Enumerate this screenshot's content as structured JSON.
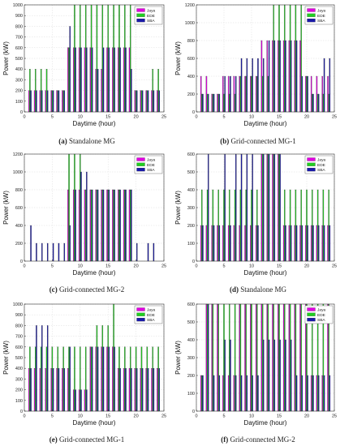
{
  "figure": {
    "panels": [
      {
        "letter": "(a)",
        "caption": "Standalone MG"
      },
      {
        "letter": "(b)",
        "caption": "Grid-connected MG-1"
      },
      {
        "letter": "(c)",
        "caption": "Grid-connected MG-2"
      },
      {
        "letter": "(d)",
        "caption": "Standalone MG"
      },
      {
        "letter": "(e)",
        "caption": "Grid-connected MG-1"
      },
      {
        "letter": "(f)",
        "caption": "Grid-connected MG-2"
      }
    ]
  },
  "colors": {
    "Jaya": "#e000e0",
    "EDE": "#22cc22",
    "SBA": "#1a1aa6"
  },
  "chart_data": [
    {
      "type": "bar",
      "xlabel": "Daytime (hour)",
      "ylabel": "Power (kW)",
      "xlim": [
        0,
        25
      ],
      "ylim": [
        0,
        1000
      ],
      "xticks": [
        0,
        5,
        10,
        15,
        20,
        25
      ],
      "yticks": [
        0,
        100,
        200,
        300,
        400,
        500,
        600,
        700,
        800,
        900,
        1000
      ],
      "grid": true,
      "legend_position": "top-right",
      "categories": [
        1,
        2,
        3,
        4,
        5,
        6,
        7,
        8,
        9,
        10,
        11,
        12,
        13,
        14,
        15,
        16,
        17,
        18,
        19,
        20,
        21,
        22,
        23,
        24
      ],
      "series": [
        {
          "name": "Jaya",
          "values": [
            200,
            200,
            200,
            200,
            200,
            200,
            200,
            600,
            600,
            600,
            600,
            600,
            400,
            400,
            600,
            600,
            600,
            600,
            600,
            200,
            200,
            200,
            200,
            200
          ]
        },
        {
          "name": "EDE",
          "values": [
            400,
            400,
            400,
            400,
            200,
            200,
            200,
            600,
            1000,
            1000,
            1000,
            1000,
            1000,
            1000,
            1000,
            1000,
            1000,
            1000,
            1000,
            200,
            200,
            200,
            400,
            400
          ]
        },
        {
          "name": "SBA",
          "values": [
            200,
            200,
            200,
            200,
            200,
            200,
            200,
            800,
            600,
            600,
            600,
            600,
            400,
            600,
            600,
            600,
            600,
            600,
            400,
            200,
            200,
            200,
            200,
            200
          ]
        }
      ]
    },
    {
      "type": "bar",
      "xlabel": "Daytime (hour)",
      "ylabel": "Power (kW)",
      "xlim": [
        0,
        25
      ],
      "ylim": [
        0,
        1200
      ],
      "xticks": [
        0,
        5,
        10,
        15,
        20,
        25
      ],
      "yticks": [
        0,
        200,
        400,
        600,
        800,
        1000,
        1200
      ],
      "grid": true,
      "legend_position": "top-right",
      "categories": [
        1,
        2,
        3,
        4,
        5,
        6,
        7,
        8,
        9,
        10,
        11,
        12,
        13,
        14,
        15,
        16,
        17,
        18,
        19,
        20,
        21,
        22,
        23,
        24
      ],
      "series": [
        {
          "name": "Jaya",
          "values": [
            400,
            400,
            200,
            200,
            400,
            400,
            400,
            400,
            400,
            400,
            400,
            800,
            800,
            800,
            800,
            800,
            800,
            800,
            800,
            400,
            400,
            400,
            400,
            400
          ]
        },
        {
          "name": "EDE",
          "values": [
            200,
            200,
            200,
            200,
            200,
            200,
            200,
            400,
            400,
            400,
            400,
            400,
            400,
            1200,
            1200,
            1200,
            1200,
            1200,
            1200,
            400,
            200,
            200,
            200,
            200
          ]
        },
        {
          "name": "SBA",
          "values": [
            200,
            200,
            200,
            200,
            400,
            400,
            400,
            600,
            600,
            600,
            600,
            600,
            800,
            800,
            800,
            800,
            800,
            800,
            400,
            400,
            200,
            200,
            600,
            600
          ]
        }
      ]
    },
    {
      "type": "bar",
      "xlabel": "Daytime (hour)",
      "ylabel": "Power (kW)",
      "xlim": [
        0,
        25
      ],
      "ylim": [
        0,
        1200
      ],
      "xticks": [
        0,
        5,
        10,
        15,
        20,
        25
      ],
      "yticks": [
        0,
        200,
        400,
        600,
        800,
        1000,
        1200
      ],
      "grid": true,
      "legend_position": "top-right",
      "categories": [
        1,
        2,
        3,
        4,
        5,
        6,
        7,
        8,
        9,
        10,
        11,
        12,
        13,
        14,
        15,
        16,
        17,
        18,
        19,
        20,
        21,
        22,
        23,
        24
      ],
      "series": [
        {
          "name": "Jaya",
          "values": [
            0,
            0,
            0,
            0,
            0,
            0,
            0,
            800,
            800,
            800,
            800,
            800,
            800,
            800,
            800,
            800,
            800,
            800,
            800,
            0,
            0,
            0,
            0,
            0
          ]
        },
        {
          "name": "EDE",
          "values": [
            0,
            0,
            0,
            0,
            0,
            0,
            0,
            1200,
            1200,
            1200,
            800,
            800,
            800,
            800,
            800,
            800,
            800,
            800,
            800,
            0,
            0,
            0,
            0,
            0
          ]
        },
        {
          "name": "SBA",
          "values": [
            400,
            200,
            200,
            200,
            200,
            200,
            200,
            400,
            800,
            1000,
            1000,
            800,
            800,
            800,
            800,
            800,
            800,
            800,
            800,
            200,
            0,
            200,
            200,
            0
          ]
        }
      ]
    },
    {
      "type": "bar",
      "xlabel": "Daytime (hour)",
      "ylabel": "Power (kW)",
      "xlim": [
        0,
        25
      ],
      "ylim": [
        0,
        600
      ],
      "xticks": [
        0,
        5,
        10,
        15,
        20,
        25
      ],
      "yticks": [
        0,
        100,
        200,
        300,
        400,
        500,
        600
      ],
      "grid": true,
      "legend_position": "top-right",
      "categories": [
        1,
        2,
        3,
        4,
        5,
        6,
        7,
        8,
        9,
        10,
        11,
        12,
        13,
        14,
        15,
        16,
        17,
        18,
        19,
        20,
        21,
        22,
        23,
        24
      ],
      "series": [
        {
          "name": "Jaya",
          "values": [
            200,
            200,
            200,
            200,
            200,
            200,
            200,
            200,
            200,
            200,
            200,
            600,
            600,
            600,
            600,
            200,
            200,
            200,
            200,
            200,
            200,
            200,
            200,
            200
          ]
        },
        {
          "name": "EDE",
          "values": [
            400,
            400,
            400,
            400,
            400,
            400,
            400,
            400,
            400,
            400,
            400,
            600,
            600,
            600,
            600,
            400,
            400,
            400,
            400,
            400,
            400,
            400,
            400,
            400
          ]
        },
        {
          "name": "SBA",
          "values": [
            200,
            600,
            200,
            200,
            600,
            200,
            600,
            600,
            600,
            600,
            200,
            600,
            600,
            600,
            600,
            200,
            200,
            200,
            200,
            200,
            200,
            200,
            200,
            200
          ]
        }
      ]
    },
    {
      "type": "bar",
      "xlabel": "Daytime (hour)",
      "ylabel": "Power (kW)",
      "xlim": [
        0,
        25
      ],
      "ylim": [
        0,
        1000
      ],
      "xticks": [
        0,
        5,
        10,
        15,
        20,
        25
      ],
      "yticks": [
        0,
        100,
        200,
        300,
        400,
        500,
        600,
        700,
        800,
        900,
        1000
      ],
      "grid": true,
      "legend_position": "top-right",
      "categories": [
        1,
        2,
        3,
        4,
        5,
        6,
        7,
        8,
        9,
        10,
        11,
        12,
        13,
        14,
        15,
        16,
        17,
        18,
        19,
        20,
        21,
        22,
        23,
        24
      ],
      "series": [
        {
          "name": "Jaya",
          "values": [
            400,
            400,
            400,
            400,
            400,
            400,
            400,
            400,
            200,
            200,
            200,
            600,
            600,
            600,
            600,
            600,
            400,
            400,
            400,
            400,
            400,
            400,
            400,
            400
          ]
        },
        {
          "name": "EDE",
          "values": [
            600,
            600,
            600,
            600,
            600,
            600,
            600,
            600,
            600,
            600,
            600,
            600,
            800,
            800,
            800,
            1000,
            600,
            600,
            600,
            600,
            600,
            600,
            600,
            600
          ]
        },
        {
          "name": "SBA",
          "values": [
            400,
            800,
            800,
            800,
            400,
            400,
            400,
            600,
            200,
            200,
            200,
            600,
            600,
            600,
            600,
            600,
            400,
            400,
            400,
            400,
            400,
            400,
            400,
            400
          ]
        }
      ]
    },
    {
      "type": "bar",
      "xlabel": "Daytime (hour)",
      "ylabel": "Power (kW)",
      "xlim": [
        0,
        25
      ],
      "ylim": [
        0,
        600
      ],
      "xticks": [
        0,
        5,
        10,
        15,
        20,
        25
      ],
      "yticks": [
        0,
        100,
        200,
        300,
        400,
        500,
        600
      ],
      "grid": true,
      "legend_position": "top-right",
      "categories": [
        1,
        2,
        3,
        4,
        5,
        6,
        7,
        8,
        9,
        10,
        11,
        12,
        13,
        14,
        15,
        16,
        17,
        18,
        19,
        20,
        21,
        22,
        23,
        24
      ],
      "series": [
        {
          "name": "Jaya",
          "values": [
            200,
            600,
            600,
            600,
            200,
            200,
            200,
            600,
            600,
            600,
            600,
            600,
            600,
            600,
            600,
            600,
            600,
            600,
            600,
            600,
            200,
            200,
            200,
            600
          ]
        },
        {
          "name": "EDE",
          "values": [
            200,
            600,
            600,
            600,
            600,
            600,
            600,
            600,
            600,
            600,
            600,
            600,
            600,
            600,
            600,
            600,
            600,
            600,
            600,
            600,
            600,
            600,
            600,
            600
          ]
        },
        {
          "name": "SBA",
          "values": [
            200,
            600,
            200,
            200,
            400,
            400,
            200,
            200,
            200,
            200,
            200,
            400,
            400,
            400,
            400,
            400,
            400,
            200,
            200,
            200,
            200,
            200,
            200,
            200
          ]
        }
      ]
    }
  ]
}
